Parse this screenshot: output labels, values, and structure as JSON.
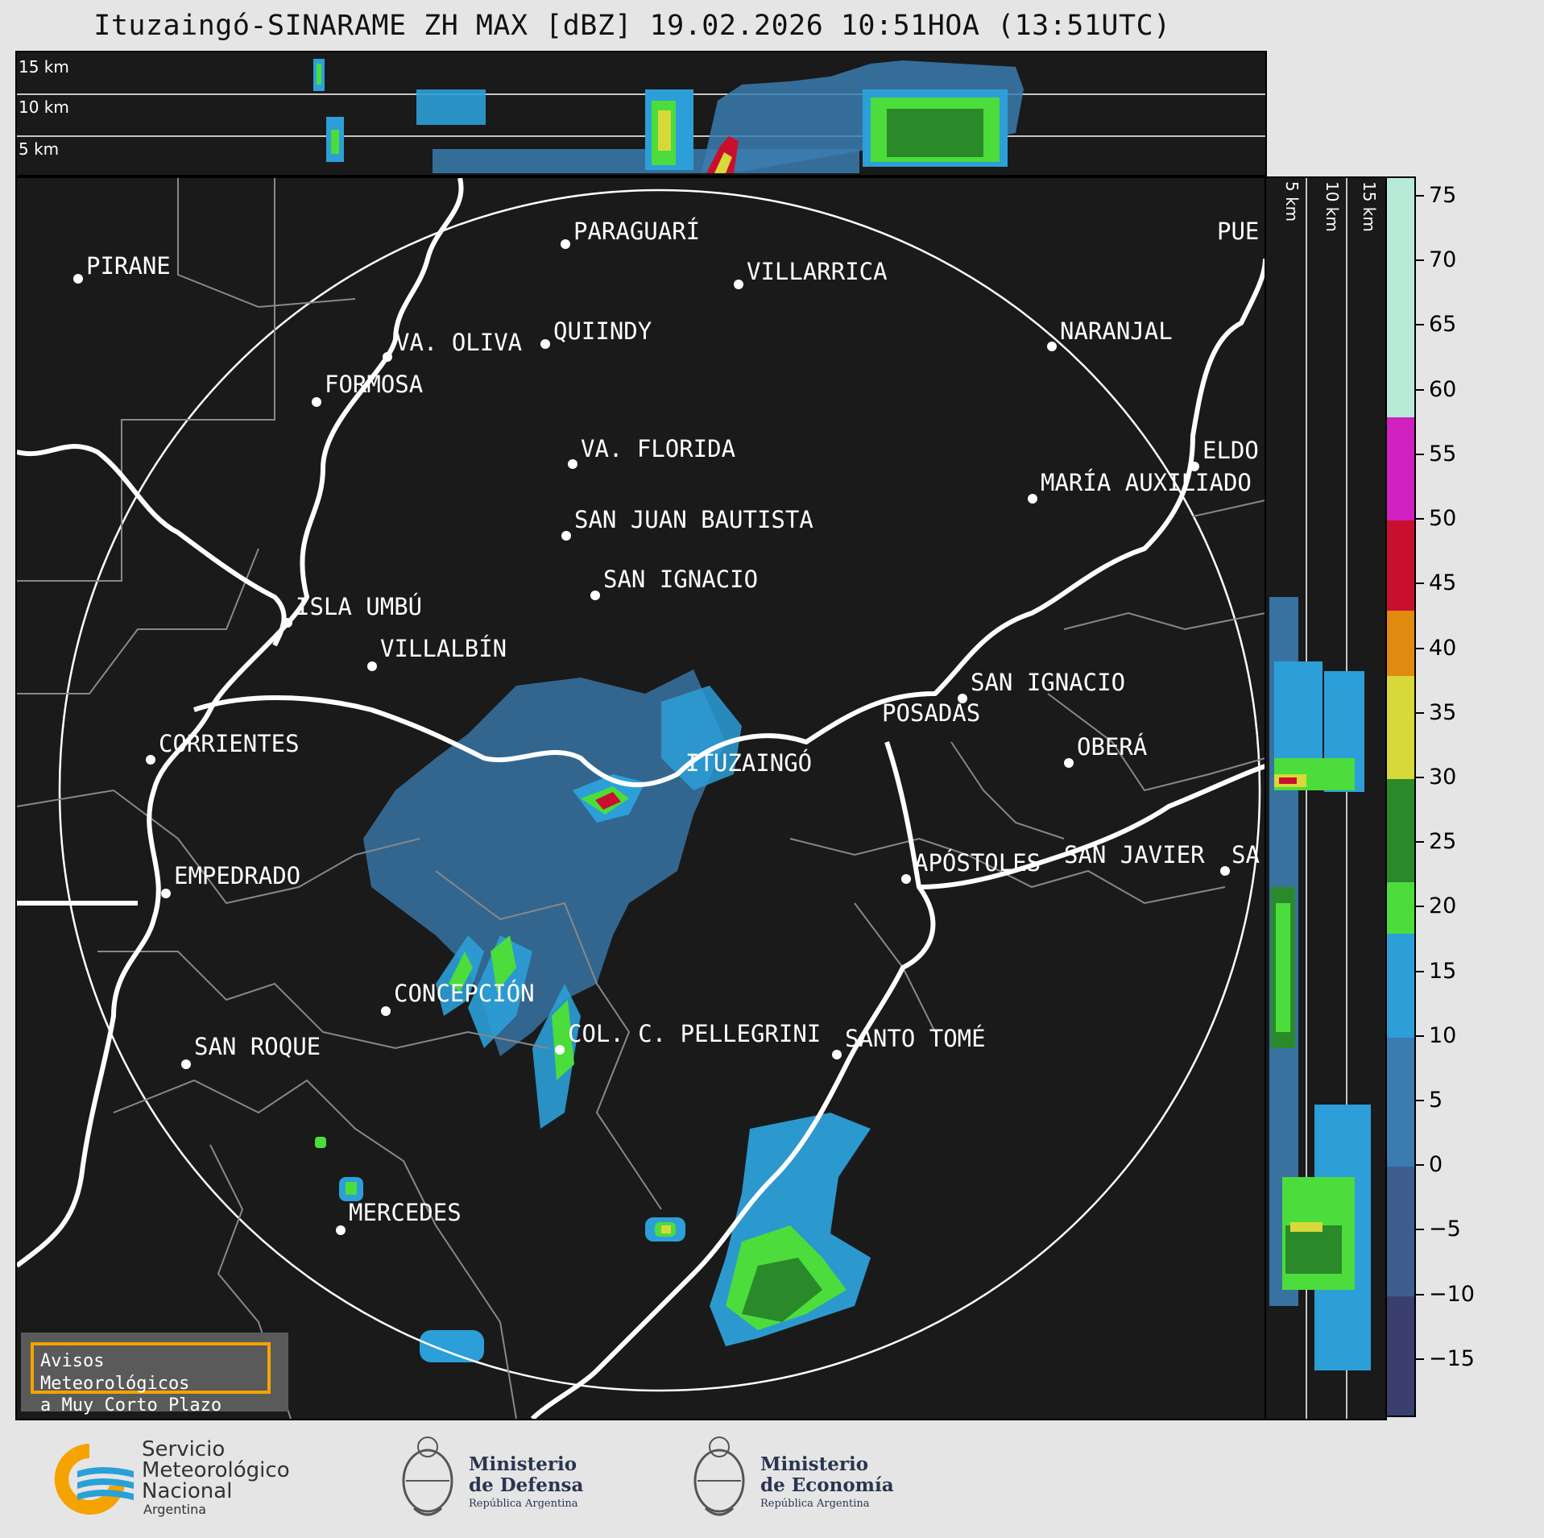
{
  "title": "Ituzaingó-SINARAME ZH MAX [dBZ] 19.02.2026 10:51HOA (13:51UTC)",
  "height_labels": [
    "15 km",
    "10 km",
    "5 km"
  ],
  "cities": [
    {
      "name": "PIRANE"
    },
    {
      "name": "PARAGUARÍ"
    },
    {
      "name": "VILLARRICA"
    },
    {
      "name": "QUIINDY"
    },
    {
      "name": "VA. OLIVA"
    },
    {
      "name": "FORMOSA"
    },
    {
      "name": "NARANJAL"
    },
    {
      "name": "PUE"
    },
    {
      "name": "VA. FLORIDA"
    },
    {
      "name": "ELDO"
    },
    {
      "name": "MARÍA AUXILIADO"
    },
    {
      "name": "SAN JUAN BAUTISTA"
    },
    {
      "name": "SAN IGNACIO"
    },
    {
      "name": "ISLA UMBÚ"
    },
    {
      "name": "VILLALBÍN"
    },
    {
      "name": "SAN IGNACIO"
    },
    {
      "name": "POSADAS"
    },
    {
      "name": "CORRIENTES"
    },
    {
      "name": "ITUZAINGÓ"
    },
    {
      "name": "OBERÁ"
    },
    {
      "name": "APÓSTOLES"
    },
    {
      "name": "SAN JAVIER"
    },
    {
      "name": "SA"
    },
    {
      "name": "EMPEDRADO"
    },
    {
      "name": "CONCEPCIÓN"
    },
    {
      "name": "COL. C. PELLEGRINI"
    },
    {
      "name": "SANTO TOMÉ"
    },
    {
      "name": "SAN ROQUE"
    },
    {
      "name": "MERCEDES"
    }
  ],
  "colorbar": {
    "unit": "dBZ",
    "ticks": [
      "75",
      "70",
      "65",
      "60",
      "55",
      "50",
      "45",
      "40",
      "35",
      "30",
      "25",
      "20",
      "15",
      "10",
      "5",
      "0",
      "−5",
      "−10",
      "−15"
    ],
    "range": [
      -19.5,
      76.5
    ],
    "stops": [
      {
        "from": -19.5,
        "to": -10,
        "color": "#3b3f6e"
      },
      {
        "from": -10,
        "to": 0,
        "color": "#3d5d8f"
      },
      {
        "from": 0,
        "to": 10,
        "color": "#3b7cb0"
      },
      {
        "from": 10,
        "to": 18,
        "color": "#2c9fd8"
      },
      {
        "from": 18,
        "to": 22,
        "color": "#4cdc3c"
      },
      {
        "from": 22,
        "to": 30,
        "color": "#2a8a2a"
      },
      {
        "from": 30,
        "to": 38,
        "color": "#d8d83a"
      },
      {
        "from": 38,
        "to": 43,
        "color": "#e08a10"
      },
      {
        "from": 43,
        "to": 50,
        "color": "#c8102e"
      },
      {
        "from": 50,
        "to": 58,
        "color": "#d020c0"
      },
      {
        "from": 58,
        "to": 76.5,
        "color": "#b8ead8"
      }
    ]
  },
  "warning": {
    "line1": "Avisos Meteorológicos",
    "line2": "a Muy Corto Plazo"
  },
  "logos": {
    "smn": {
      "line1": "Servicio",
      "line2": "Meteorológico",
      "line3": "Nacional",
      "line4": "Argentina"
    },
    "defensa": {
      "line1": "Ministerio",
      "line2": "de Defensa",
      "line3": "República Argentina"
    },
    "economia": {
      "line1": "Ministerio",
      "line2": "de Economía",
      "line3": "República Argentina"
    }
  },
  "colors": {
    "panel_bg": "#1a1a1a",
    "smn_orange": "#f5a300",
    "smn_blue": "#2aa0d8"
  }
}
